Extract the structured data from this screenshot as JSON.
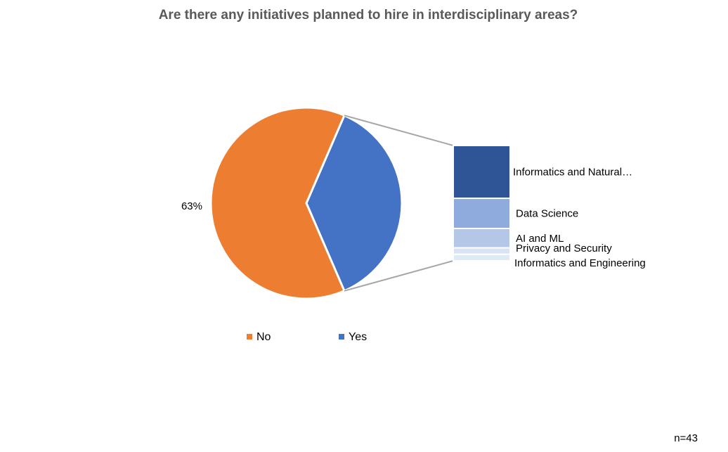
{
  "chart_data": {
    "type": "bar-of-pie",
    "title": "Are there any initiatives planned to hire in interdisciplinary areas?",
    "pie": {
      "slices": [
        {
          "name": "No",
          "value": 63,
          "color": "#ED7D31",
          "data_label": "63%"
        },
        {
          "name": "Yes",
          "value": 37,
          "color": "#4472C4",
          "data_label": ""
        }
      ]
    },
    "bar": {
      "segments": [
        {
          "name": "Informatics and Natural…",
          "value": 49,
          "color": "#2F5597"
        },
        {
          "name": "Data Science",
          "value": 28,
          "color": "#8FAADC"
        },
        {
          "name": "AI and ML",
          "value": 18,
          "color": "#B4C7E7"
        },
        {
          "name": "Privacy and Security",
          "value": 6,
          "color": "#DAE3F3"
        },
        {
          "name": "Informatics and Engineering",
          "value": 6,
          "color": "#DEEBF7"
        }
      ]
    },
    "legend": {
      "position": "bottom",
      "items": [
        {
          "label": "No",
          "color": "#ED7D31"
        },
        {
          "label": "Yes",
          "color": "#4472C4"
        }
      ]
    },
    "note": "n=43"
  }
}
